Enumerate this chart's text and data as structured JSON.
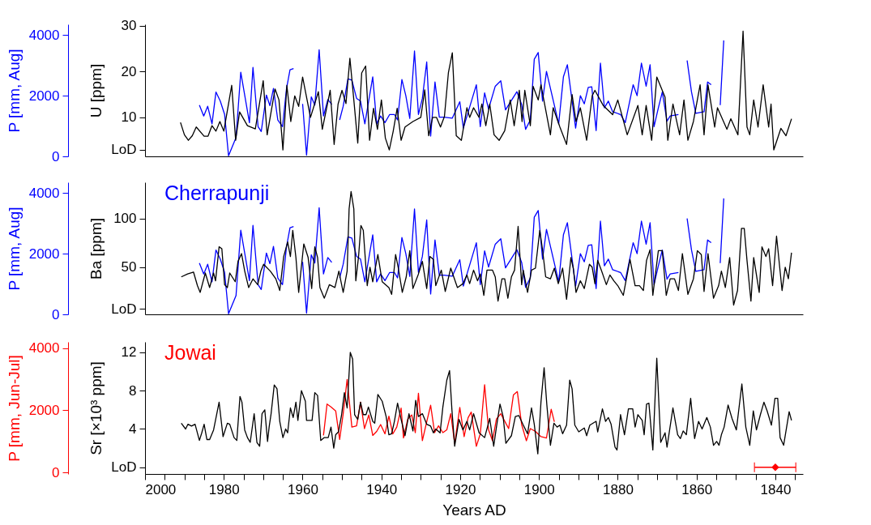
{
  "chart_data": [
    {
      "type": "line",
      "xlim": [
        2000,
        1833
      ],
      "tick_labels": "y",
      "ylabel": "U [ppm]",
      "ylim": [
        1.5,
        30.3
      ],
      "yticks": [
        {
          "value": 3,
          "label": "LoD"
        },
        10,
        20,
        30
      ],
      "y2label": "P [mm, Aug]",
      "y2lim": [
        0,
        4350
      ],
      "y2ticks": [
        0,
        2000,
        4000
      ],
      "series": [
        {
          "color": "#0000ff",
          "axis": "y2",
          "x": [
            1986.2,
            1985.1,
            1984.1,
            1983.0,
            1982.0,
            1980.9,
            1979.8,
            1978.8,
            1976.9,
            1975.7,
            1973.5,
            1972.6,
            1971.3,
            1970.5,
            1969.2,
            1968.3,
            1967.4,
            1966.3,
            1965.1,
            1964.1,
            1963.2,
            1962.3,
            1961.5,
            1960.0,
            1959.0,
            1957.8,
            1956.9,
            1955.8,
            1954.7,
            1953.6,
            1952.6,
            1951.5,
            1950.6,
            1949.7,
            1948.5,
            1947.5,
            1946.3,
            1945.3,
            1944.2,
            1942.2,
            1941.2,
            1940.2,
            1939.1,
            1937.9,
            1936.7,
            1935.9,
            1934.8,
            1933.8,
            1932.8,
            1931.6,
            1930.6,
            1929.6,
            1928.5,
            1927.5,
            1926.4,
            1925.3,
            1924.1,
            1922.0,
            1920.1,
            1919.2,
            1915.9,
            1914.9,
            1913.8,
            1912.8,
            1911.1,
            1909.7,
            1908.5,
            1905.6,
            1904.4,
            1903.4,
            1902.2,
            1901.2,
            1900.2,
            1899.1,
            1898.1,
            1895.0,
            1893.8,
            1892.8,
            1890.7,
            1889.5,
            1888.5,
            1887.5,
            1886.6,
            1885.5,
            1884.4,
            1883.4,
            1882.4,
            1881.3,
            1879.3,
            1878.1,
            1876.1,
            1875.1,
            1874.0,
            1872.8,
            1871.8,
            1870.8,
            1869.7,
            1868.7,
            1867.5,
            1866.7,
            1864.6,
            1863.5,
            1862.4,
            1861.3,
            1860.2,
            1858.1,
            1857.2,
            1856.3,
            1855.3,
            1854.0,
            1853.1
          ],
          "values": [
            1690,
            1330,
            1650,
            1070,
            2120,
            1820,
            1380,
            20,
            620,
            2770,
            1110,
            2930,
            980,
            820,
            2020,
            1670,
            2240,
            1200,
            980,
            2220,
            2850,
            2890,
            null,
            1730,
            40,
            1960,
            1690,
            3510,
            1330,
            1870,
            1710,
            null,
            1200,
            1650,
            2550,
            2510,
            1910,
            1820,
            1070,
            2620,
            1070,
            1330,
            1110,
            1380,
            1380,
            1200,
            2530,
            2000,
            1250,
            3470,
            1380,
            1910,
            3110,
            670,
            2450,
            1290,
            1290,
            1260,
            1800,
            930,
            2360,
            980,
            2090,
            1560,
            2310,
            2490,
            1530,
            2130,
            1710,
            890,
            1200,
            3200,
            3420,
            1820,
            2800,
            1070,
            2620,
            3020,
            930,
            2000,
            1730,
            2270,
            2290,
            850,
            3070,
            1600,
            1820,
            1470,
            1380,
            1110,
            2360,
            2000,
            3070,
            2310,
            3020,
            980,
            1600,
            2120,
            1160,
            1330,
            1380,
            null,
            3160,
            2130,
            1420,
            1470,
            2450,
            2360,
            null,
            1690,
            3820
          ]
        },
        {
          "color": "#000000",
          "axis": "y",
          "x": [
            1991,
            1990,
            1989,
            1988,
            1987,
            1985,
            1984,
            1983,
            1982,
            1981,
            1980,
            1978,
            1977,
            1976,
            1974,
            1972,
            1970,
            1969,
            1967,
            1966,
            1965,
            1964,
            1963,
            1962,
            1961,
            1960,
            1958,
            1956,
            1955,
            1953,
            1952,
            1951,
            1950,
            1949,
            1948,
            1947,
            1946,
            1945,
            1944,
            1943,
            1942,
            1941,
            1940,
            1939,
            1938,
            1937,
            1936,
            1935,
            1934,
            1932,
            1930,
            1929,
            1928,
            1927,
            1926,
            1925,
            1924,
            1923,
            1922,
            1921,
            1919.7,
            1918.3,
            1917.6,
            1916.6,
            1915.2,
            1914.5,
            1913.5,
            1912.5,
            1911.4,
            1910.1,
            1908.7,
            1907.3,
            1906.3,
            1905,
            1904.3,
            1903.6,
            1902.2,
            1901.5,
            1900.2,
            1899.5,
            1897.1,
            1896.4,
            1894.7,
            1893,
            1891.6,
            1890.6,
            1889.5,
            1887.9,
            1886.5,
            1885.8,
            1883.7,
            1881.3,
            1880,
            1877.6,
            1874.9,
            1873.8,
            1872.8,
            1871.4,
            1870.1,
            1868,
            1867.3,
            1866,
            1864.3,
            1863.2,
            1862.2,
            1860.8,
            1859.1,
            1858.1,
            1857.1,
            1855.4,
            1854.7,
            1852.3,
            1851.3,
            1849.5,
            1848.2,
            1847.2,
            1846.5,
            1845.5,
            1844.4,
            1843.1,
            1841.7,
            1841.1,
            1840.4,
            1838.6,
            1837.3,
            1835.9
          ],
          "values": [
            8.9,
            6.2,
            5.0,
            6.0,
            7.9,
            5.9,
            5.9,
            8.2,
            7.0,
            9.1,
            7.0,
            17.0,
            5.0,
            11.2,
            8.2,
            7.5,
            18.0,
            6.2,
            16.2,
            13.8,
            2.9,
            17.0,
            9.1,
            14.7,
            12.4,
            18.8,
            10.0,
            15.6,
            7.4,
            15.9,
            4.1,
            12.9,
            15.9,
            13.0,
            22.9,
            13.8,
            4.4,
            19.7,
            21.2,
            5.0,
            12.0,
            7.4,
            13.8,
            5.5,
            2.9,
            7.0,
            12.0,
            5.0,
            7.9,
            9.1,
            10.0,
            16.0,
            6.0,
            10.0,
            10.0,
            7.9,
            10.2,
            19.7,
            24.1,
            6.0,
            5.0,
            12.1,
            10.0,
            12.1,
            10.0,
            12.9,
            8.2,
            12.9,
            6.2,
            5.0,
            7.1,
            13.8,
            8.2,
            15.9,
            9.1,
            15.9,
            8.2,
            16.8,
            13.8,
            17.1,
            6.2,
            12.1,
            7.9,
            4.1,
            15.0,
            9.1,
            12.1,
            5.0,
            14.7,
            15.9,
            12.6,
            10.6,
            13.8,
            6.2,
            12.6,
            6.2,
            12.6,
            5.0,
            18.8,
            14.4,
            5.0,
            12.9,
            6.2,
            13.8,
            5.0,
            9.1,
            17.1,
            6.2,
            17.1,
            7.9,
            12.1,
            7.4,
            9.7,
            6.2,
            28.8,
            7.9,
            6.2,
            13.8,
            7.9,
            17.1,
            7.9,
            12.9,
            2.9,
            7.6,
            6.0,
            9.7
          ]
        }
      ]
    },
    {
      "type": "line",
      "xlim": [
        2000,
        1833
      ],
      "tick_labels": "y",
      "ylabel": "Ba [ppm]",
      "ylim": [
        1.4,
        137.5
      ],
      "yticks": [
        {
          "value": 7,
          "label": "LoD"
        },
        50,
        100
      ],
      "y2label": "P [mm, Aug]",
      "y2lim": [
        0,
        4350
      ],
      "y2ticks": [
        0,
        2000,
        4000
      ],
      "series": [
        {
          "name": "Cherrapunji",
          "color": "#0000ff",
          "axis": "y2",
          "x": [
            1986.2,
            1985.1,
            1984.1,
            1983.0,
            1982.0,
            1980.9,
            1979.8,
            1978.8,
            1976.9,
            1975.7,
            1973.5,
            1972.6,
            1971.3,
            1970.5,
            1969.2,
            1968.3,
            1967.4,
            1966.3,
            1965.1,
            1964.1,
            1963.2,
            1962.3,
            1961.5,
            1960.0,
            1959.0,
            1957.8,
            1956.9,
            1955.8,
            1954.7,
            1953.6,
            1952.6,
            1951.5,
            1950.6,
            1949.7,
            1948.5,
            1947.5,
            1946.3,
            1945.3,
            1944.2,
            1942.2,
            1941.2,
            1940.2,
            1939.1,
            1937.9,
            1936.7,
            1935.9,
            1934.8,
            1933.8,
            1932.8,
            1931.6,
            1930.6,
            1929.6,
            1928.5,
            1927.5,
            1926.4,
            1925.3,
            1924.1,
            1922.0,
            1920.1,
            1919.2,
            1915.9,
            1914.9,
            1913.8,
            1912.8,
            1911.1,
            1909.7,
            1908.5,
            1905.6,
            1904.4,
            1903.4,
            1902.2,
            1901.2,
            1900.2,
            1899.1,
            1898.1,
            1895.0,
            1893.8,
            1892.8,
            1890.7,
            1889.5,
            1888.5,
            1887.5,
            1886.6,
            1885.5,
            1884.4,
            1883.4,
            1882.4,
            1881.3,
            1879.3,
            1878.1,
            1876.1,
            1875.1,
            1874.0,
            1872.8,
            1871.8,
            1870.8,
            1869.7,
            1868.7,
            1867.5,
            1866.7,
            1864.6,
            1863.5,
            1862.4,
            1861.3,
            1860.2,
            1858.1,
            1857.2,
            1856.3,
            1855.3,
            1854.0,
            1853.1
          ],
          "values": [
            1690,
            1330,
            1650,
            1070,
            2120,
            1820,
            1380,
            20,
            620,
            2770,
            1110,
            2930,
            980,
            820,
            2020,
            1670,
            2240,
            1200,
            980,
            2220,
            2850,
            2890,
            null,
            1730,
            40,
            1960,
            1690,
            3510,
            1330,
            1870,
            1710,
            null,
            1200,
            1650,
            2550,
            2510,
            1910,
            1820,
            1070,
            2620,
            1070,
            1330,
            1110,
            1380,
            1380,
            1200,
            2530,
            2000,
            1250,
            3470,
            1380,
            1910,
            3110,
            670,
            2450,
            1290,
            1290,
            1260,
            1800,
            930,
            2360,
            980,
            2090,
            1560,
            2310,
            2490,
            1530,
            2130,
            1710,
            890,
            1200,
            3200,
            3420,
            1820,
            2800,
            1070,
            2620,
            3020,
            930,
            2000,
            1730,
            2270,
            2290,
            850,
            3070,
            1600,
            1820,
            1470,
            1380,
            1110,
            2360,
            2000,
            3070,
            2310,
            3020,
            980,
            1600,
            2120,
            1160,
            1330,
            1380,
            null,
            3160,
            2130,
            1420,
            1470,
            2450,
            2360,
            null,
            1690,
            3820
          ]
        },
        {
          "color": "#000000",
          "axis": "y",
          "x": [
            1990.8,
            1989.2,
            1987.7,
            1986.7,
            1986.0,
            1984.7,
            1983.6,
            1982.6,
            1982.1,
            1981.2,
            1980.5,
            1979.8,
            1979.1,
            1978.5,
            1977.1,
            1976.4,
            1975.5,
            1974.7,
            1973.7,
            1972.6,
            1971.4,
            1970.6,
            1969.9,
            1968.2,
            1966.8,
            1965.8,
            1964.8,
            1963.8,
            1963.1,
            1962.5,
            1961.7,
            1961.0,
            1959.7,
            1958.6,
            1957.7,
            1956.9,
            1956.2,
            1955.6,
            1954.5,
            1953.2,
            1951.8,
            1950.8,
            1949.7,
            1948.7,
            1948.2,
            1947.7,
            1947.0,
            1946.5,
            1945.8,
            1945.2,
            1944.6,
            1943.6,
            1942.9,
            1942.2,
            1940.9,
            1939.8,
            1938.1,
            1937.4,
            1936.4,
            1935.7,
            1934.7,
            1933.7,
            1932.8,
            1932.0,
            1930.6,
            1929.6,
            1928.5,
            1927.7,
            1926.8,
            1926.2,
            1924.8,
            1923.8,
            1922.4,
            1920.7,
            1919.3,
            1918.3,
            1917.6,
            1916.6,
            1915.6,
            1914.9,
            1914.0,
            1913.2,
            1911.8,
            1911.1,
            1910.4,
            1909.4,
            1908.7,
            1907.9,
            1907.0,
            1906.2,
            1905.3,
            1904.4,
            1904.0,
            1902.9,
            1901.9,
            1900.9,
            1899.8,
            1899.1,
            1898.3,
            1897.1,
            1896.1,
            1895.1,
            1894.0,
            1893.0,
            1891.9,
            1891.3,
            1890.6,
            1889.5,
            1888.5,
            1887.2,
            1886.5,
            1885.8,
            1885.1,
            1884.1,
            1882.9,
            1882.0,
            1881.0,
            1880.0,
            1878.6,
            1876.9,
            1875.6,
            1874.5,
            1873.5,
            1872.7,
            1871.8,
            1871.1,
            1869.7,
            1868.7,
            1867.7,
            1866.7,
            1865.6,
            1864.6,
            1863.6,
            1862.2,
            1860.8,
            1859.8,
            1858.8,
            1858.1,
            1857.1,
            1855.7,
            1854.4,
            1853.7,
            1852.7,
            1851.6,
            1850.6,
            1849.6,
            1848.6,
            1847.9,
            1847.2,
            1846.2,
            1845.5,
            1844.1,
            1843.4,
            1842.4,
            1841.7,
            1840.7,
            1839.7,
            1838.3,
            1837.5,
            1836.7,
            1835.9
          ],
          "values": [
            40,
            43,
            45,
            31,
            24,
            44,
            29,
            44,
            36,
            71,
            69,
            32,
            29,
            44,
            35,
            56,
            64,
            46,
            29,
            38,
            32,
            46,
            53,
            46,
            38,
            26,
            61,
            76,
            61,
            88,
            60,
            24,
            74,
            60,
            28,
            71,
            60,
            29,
            18,
            32,
            29,
            46,
            24,
            46,
            110,
            128,
            110,
            36,
            61,
            93,
            88,
            31,
            50,
            35,
            63,
            35,
            29,
            22,
            63,
            49,
            24,
            40,
            67,
            28,
            43,
            56,
            28,
            61,
            58,
            31,
            47,
            25,
            49,
            29,
            33,
            42,
            33,
            47,
            36,
            43,
            21,
            47,
            47,
            40,
            15,
            38,
            38,
            18,
            40,
            47,
            92,
            32,
            47,
            24,
            47,
            49,
            88,
            68,
            40,
            38,
            49,
            33,
            49,
            17,
            60,
            49,
            24,
            36,
            28,
            53,
            50,
            33,
            57,
            46,
            32,
            42,
            36,
            31,
            21,
            58,
            31,
            31,
            26,
            57,
            68,
            21,
            67,
            67,
            21,
            38,
            38,
            26,
            64,
            22,
            38,
            67,
            63,
            25,
            64,
            18,
            31,
            46,
            29,
            60,
            11,
            26,
            90,
            90,
            57,
            15,
            60,
            24,
            71,
            61,
            69,
            31,
            82,
            26,
            50,
            38,
            65
          ]
        }
      ]
    },
    {
      "type": "line",
      "xlim": [
        2000,
        1833
      ],
      "xlabel": "Years AD",
      "xticks": [
        2000,
        {
          "value": 1995,
          "label": null
        },
        {
          "value": 1990,
          "label": null
        },
        {
          "value": 1985,
          "label": null
        },
        1980,
        {
          "value": 1975,
          "label": null
        },
        {
          "value": 1970,
          "label": null
        },
        {
          "value": 1965,
          "label": null
        },
        1960,
        {
          "value": 1955,
          "label": null
        },
        {
          "value": 1950,
          "label": null
        },
        {
          "value": 1945,
          "label": null
        },
        1940,
        {
          "value": 1935,
          "label": null
        },
        {
          "value": 1930,
          "label": null
        },
        {
          "value": 1925,
          "label": null
        },
        1920,
        {
          "value": 1915,
          "label": null
        },
        {
          "value": 1910,
          "label": null
        },
        {
          "value": 1905,
          "label": null
        },
        1900,
        {
          "value": 1895,
          "label": null
        },
        {
          "value": 1890,
          "label": null
        },
        {
          "value": 1885,
          "label": null
        },
        1880,
        {
          "value": 1875,
          "label": null
        },
        {
          "value": 1870,
          "label": null
        },
        {
          "value": 1865,
          "label": null
        },
        1860,
        {
          "value": 1855,
          "label": null
        },
        {
          "value": 1850,
          "label": null
        },
        {
          "value": 1845,
          "label": null
        },
        1840,
        {
          "value": 1835,
          "label": null
        }
      ],
      "ylabel": "Sr [×10³ ppm]",
      "ylim": [
        -0.7,
        13.1
      ],
      "yticks": [
        {
          "value": 0,
          "label": "LoD"
        },
        4,
        8,
        12
      ],
      "y2label": "P [mm, Jun-Jul]",
      "y2lim": [
        -50,
        4200
      ],
      "y2ticks": [
        0,
        2000,
        4000
      ],
      "series": [
        {
          "name": "Jowai",
          "color": "#ff0000",
          "axis": "y2",
          "x": [
            1954.7,
            1953.8,
            1952.8,
            1951.6,
            1950.6,
            1949.7,
            1948.7,
            1947.5,
            1946.3,
            1945.3,
            1944.3,
            1943.2,
            1942.2,
            1941.2,
            1940.2,
            1939.1,
            1938.1,
            1937.1,
            1936.1,
            1935.0,
            1934.4,
            1933.3,
            1932.3,
            1931.4,
            1930.6,
            1929.6,
            1928.5,
            1927.5,
            1926.5,
            1925.5,
            1924.4,
            1923.4,
            1922.4,
            1921.4,
            1920.1,
            1919.0,
            1918.0,
            1917.2,
            1915.9,
            1914.9,
            1913.8,
            1912.8,
            1911.8,
            1910.8,
            1909.7,
            1907.7,
            1906.5,
            1905.5,
            1904.4,
            1903.2,
            1902.2,
            1900.9,
            1899.5,
            1898.1,
            1896.9,
            1896.1
          ],
          "values": [
            1190,
            2200,
            2110,
            1980,
            1060,
            1890,
            2990,
            1460,
            1500,
            2260,
            1410,
            1850,
            1190,
            1320,
            1540,
            1240,
            1810,
            1240,
            1460,
            2070,
            1110,
            1720,
            1850,
            1280,
            2550,
            1020,
            1630,
            2160,
            1280,
            1500,
            1280,
            1370,
            1890,
            930,
            2090,
            1150,
            1760,
            1940,
            840,
            1240,
            2820,
            1370,
            1020,
            1720,
            1890,
            1410,
            2490,
            2600,
            1540,
            1020,
            1410,
            1320,
            1150,
            1110,
            2030,
            1630
          ]
        },
        {
          "color": "#000000",
          "axis": "y",
          "x": [
            1990.8,
            1989.7,
            1989.1,
            1988.2,
            1987.3,
            1986.2,
            1985.6,
            1985.0,
            1984.3,
            1983.6,
            1982.6,
            1981.2,
            1980.2,
            1979.1,
            1978.5,
            1977.4,
            1976.7,
            1975.9,
            1975.4,
            1974.7,
            1974.0,
            1973.3,
            1972.3,
            1971.6,
            1970.9,
            1970.3,
            1969.6,
            1968.9,
            1968.5,
            1968.0,
            1967.2,
            1966.5,
            1965.8,
            1965.0,
            1964.3,
            1963.8,
            1963.1,
            1962.4,
            1961.7,
            1961.2,
            1960.3,
            1959.3,
            1959.0,
            1957.6,
            1956.9,
            1956.2,
            1955.4,
            1954.5,
            1953.5,
            1952.8,
            1952.1,
            1951.6,
            1950.9,
            1950.1,
            1949.4,
            1948.7,
            1947.9,
            1947.3,
            1946.8,
            1946.0,
            1945.3,
            1944.6,
            1943.9,
            1943.3,
            1942.2,
            1941.7,
            1940.9,
            1939.8,
            1938.8,
            1938.1,
            1937.4,
            1936.7,
            1935.9,
            1935.0,
            1934.0,
            1933.0,
            1932.0,
            1931.3,
            1930.6,
            1929.6,
            1928.5,
            1927.5,
            1926.8,
            1926.2,
            1925.1,
            1924.4,
            1923.4,
            1922.7,
            1922.1,
            1921.4,
            1920.3,
            1919.3,
            1918.3,
            1917.6,
            1916.6,
            1915.2,
            1913.8,
            1912.5,
            1911.5,
            1910.8,
            1909.9,
            1909.1,
            1908.4,
            1907.0,
            1906.0,
            1905.1,
            1904.1,
            1902.9,
            1901.9,
            1901.2,
            1900.3,
            1899.5,
            1898.7,
            1898.0,
            1897.1,
            1896.2,
            1895.4,
            1894.7,
            1894.0,
            1893.0,
            1892.2,
            1891.6,
            1890.9,
            1889.9,
            1888.5,
            1887.9,
            1887.1,
            1885.5,
            1885.1,
            1883.9,
            1883.1,
            1882.4,
            1881.7,
            1880.7,
            1880.2,
            1879.3,
            1878.3,
            1877.3,
            1876.2,
            1875.6,
            1874.9,
            1873.8,
            1873.3,
            1872.7,
            1872.1,
            1871.1,
            1870.1,
            1869.1,
            1868.0,
            1867.5,
            1866.0,
            1864.8,
            1864.1,
            1863.4,
            1862.6,
            1861.5,
            1860.5,
            1859.5,
            1858.6,
            1857.4,
            1856.5,
            1855.7,
            1854.9,
            1854.3,
            1853.7,
            1853.0,
            1852.0,
            1851.0,
            1849.9,
            1848.5,
            1847.5,
            1846.5,
            1845.6,
            1844.8,
            1843.8,
            1842.9,
            1842.1,
            1841.0,
            1840.1,
            1839.4,
            1838.8,
            1837.9,
            1836.5,
            1835.9
          ],
          "values": [
            4.6,
            4.0,
            4.5,
            4.3,
            4.5,
            2.8,
            3.6,
            4.5,
            2.9,
            2.9,
            3.9,
            6.8,
            3.2,
            4.6,
            4.5,
            3.1,
            2.8,
            7.4,
            6.8,
            3.9,
            3.1,
            2.6,
            5.6,
            2.6,
            2.2,
            5.6,
            6.0,
            2.7,
            4.2,
            5.6,
            8.6,
            8.2,
            4.8,
            3.1,
            4.0,
            3.6,
            6.2,
            5.2,
            6.8,
            4.9,
            8.0,
            6.9,
            4.9,
            4.9,
            7.8,
            7.5,
            2.8,
            3.1,
            3.1,
            4.2,
            2.0,
            3.4,
            3.7,
            5.5,
            7.8,
            6.2,
            12.0,
            11.3,
            5.5,
            5.0,
            6.8,
            5.5,
            5.5,
            6.3,
            4.8,
            4.6,
            7.6,
            6.9,
            5.3,
            3.4,
            3.5,
            4.8,
            6.7,
            5.0,
            3.3,
            5.6,
            3.8,
            7.0,
            5.3,
            5.6,
            4.5,
            4.3,
            3.6,
            4.0,
            3.6,
            6.3,
            9.1,
            10.1,
            6.0,
            2.2,
            5.0,
            3.9,
            4.8,
            3.9,
            5.6,
            3.6,
            3.1,
            5.1,
            2.2,
            4.2,
            6.6,
            5.3,
            2.5,
            3.3,
            5.3,
            5.4,
            4.5,
            3.5,
            6.2,
            4.5,
            1.4,
            6.8,
            10.4,
            6.5,
            2.3,
            4.6,
            4.2,
            4.4,
            3.5,
            4.4,
            9.1,
            8.2,
            4.4,
            3.7,
            4.1,
            3.3,
            4.4,
            4.8,
            3.7,
            6.1,
            4.8,
            5.2,
            4.5,
            2.1,
            1.8,
            5.5,
            3.4,
            6.1,
            6.1,
            4.2,
            5.5,
            4.9,
            3.4,
            6.6,
            6.7,
            1.8,
            11.4,
            2.6,
            3.6,
            2.1,
            6.2,
            3.4,
            3.0,
            3.8,
            3.4,
            7.2,
            3.0,
            4.8,
            4.0,
            5.2,
            4.2,
            2.3,
            2.7,
            2.3,
            3.4,
            4.2,
            6.5,
            5.1,
            3.9,
            8.7,
            4.2,
            2.3,
            5.9,
            3.9,
            5.5,
            6.8,
            5.9,
            4.4,
            7.2,
            7.2,
            3.1,
            2.3,
            5.8,
            4.9
          ]
        },
        {
          "type": "scatter",
          "color": "#ff0000",
          "axis": "y",
          "marker": "diamond",
          "x": [
            1840
          ],
          "values": [
            0
          ],
          "xerrors": [
            [
              1834.8,
              1845.3
            ]
          ]
        }
      ]
    }
  ]
}
